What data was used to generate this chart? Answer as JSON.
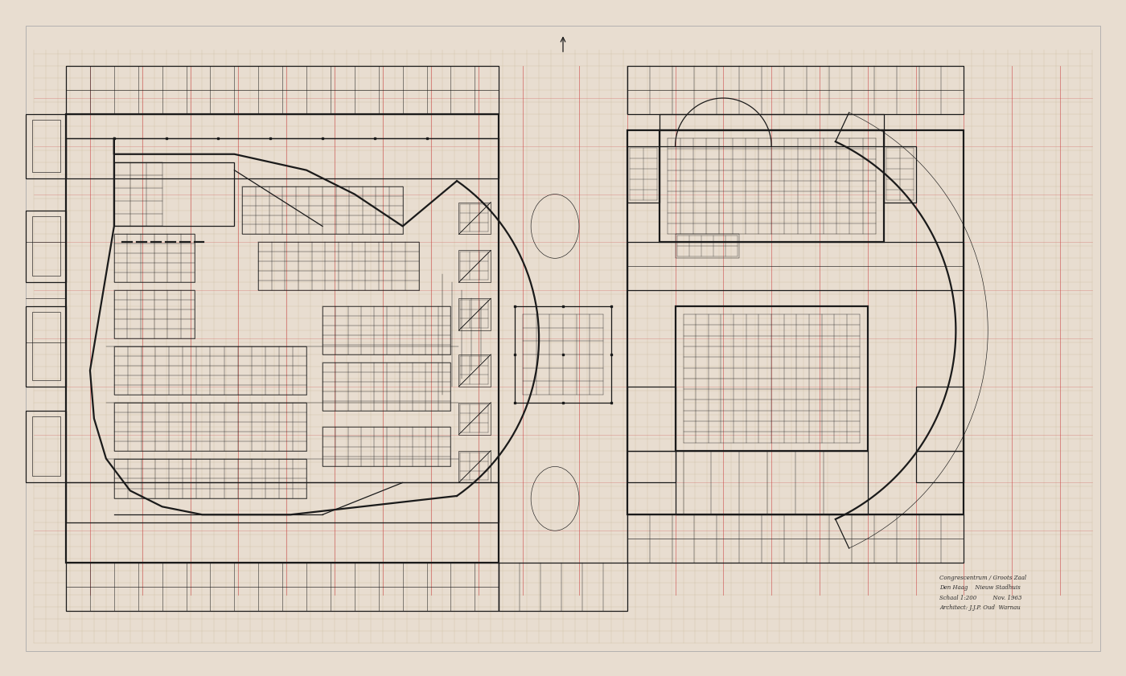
{
  "bg_color": "#e8ddd0",
  "line_color": "#1a1a1a",
  "red_line_color": "#cc4444",
  "grid_color": "#c8b89a",
  "lw_thick": 1.6,
  "lw_med": 0.9,
  "lw_thin": 0.45,
  "lw_grid": 0.22,
  "figsize": [
    14.0,
    8.41
  ],
  "dpi": 100,
  "annotation": "Congrescentrum / Groots Zaal\nDen Haag    Nieuw Stadhuis\nSchaal 1:200         Nov. 1963\nArchitect: J.J.P. Oud  Warnau"
}
